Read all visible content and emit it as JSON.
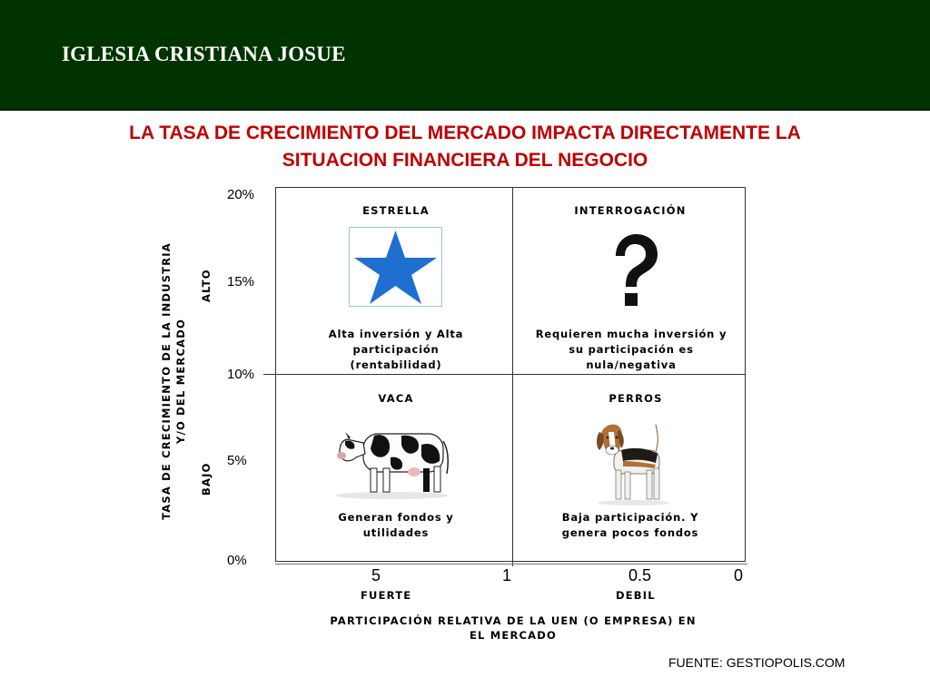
{
  "header": {
    "title": "IGLESIA CRISTIANA JOSUE"
  },
  "slide": {
    "title_line1": "LA TASA DE CRECIMIENTO DEL MERCADO IMPACTA DIRECTAMENTE LA",
    "title_line2": "SITUACION FINANCIERA DEL NEGOCIO"
  },
  "matrix": {
    "y_axis_label_line1": "TASA DE CRECIMIENTO DE LA INDUSTRIA",
    "y_axis_label_line2": "Y/O DEL MERCADO",
    "y_high": "ALTO",
    "y_low": "BAJO",
    "y_ticks": [
      "20%",
      "15%",
      "10%",
      "5%",
      "0%"
    ],
    "x_ticks": [
      "5",
      "1",
      "0.5",
      "0"
    ],
    "x_strong": "FUERTE",
    "x_weak": "DEBIL",
    "x_axis_label_line1": "PARTICIPACIÓN RELATIVA DE LA UEN (O EMPRESA) EN",
    "x_axis_label_line2": "EL MERCADO",
    "quadrants": {
      "star": {
        "title": "ESTRELLA",
        "desc_line1": "Alta inversión y Alta",
        "desc_line2": "participación",
        "desc_line3": "(rentabilidad)",
        "icon": "star-icon"
      },
      "question": {
        "title": "INTERROGACIÓN",
        "desc_line1": "Requieren mucha inversión y",
        "desc_line2": "su participación es",
        "desc_line3": "nula/negativa",
        "icon": "question-mark-icon"
      },
      "cow": {
        "title": "VACA",
        "desc_line1": "Generan fondos y",
        "desc_line2": "utilidades",
        "icon": "cow-icon"
      },
      "dog": {
        "title": "PERROS",
        "desc_line1": "Baja participación. Y",
        "desc_line2": "genera pocos fondos",
        "icon": "dog-icon"
      }
    }
  },
  "footer": {
    "source": "FUENTE: GESTIOPOLIS.COM"
  },
  "colors": {
    "header_bg": "#003300",
    "title_red": "#c00000",
    "star_blue": "#1f6fd0"
  }
}
